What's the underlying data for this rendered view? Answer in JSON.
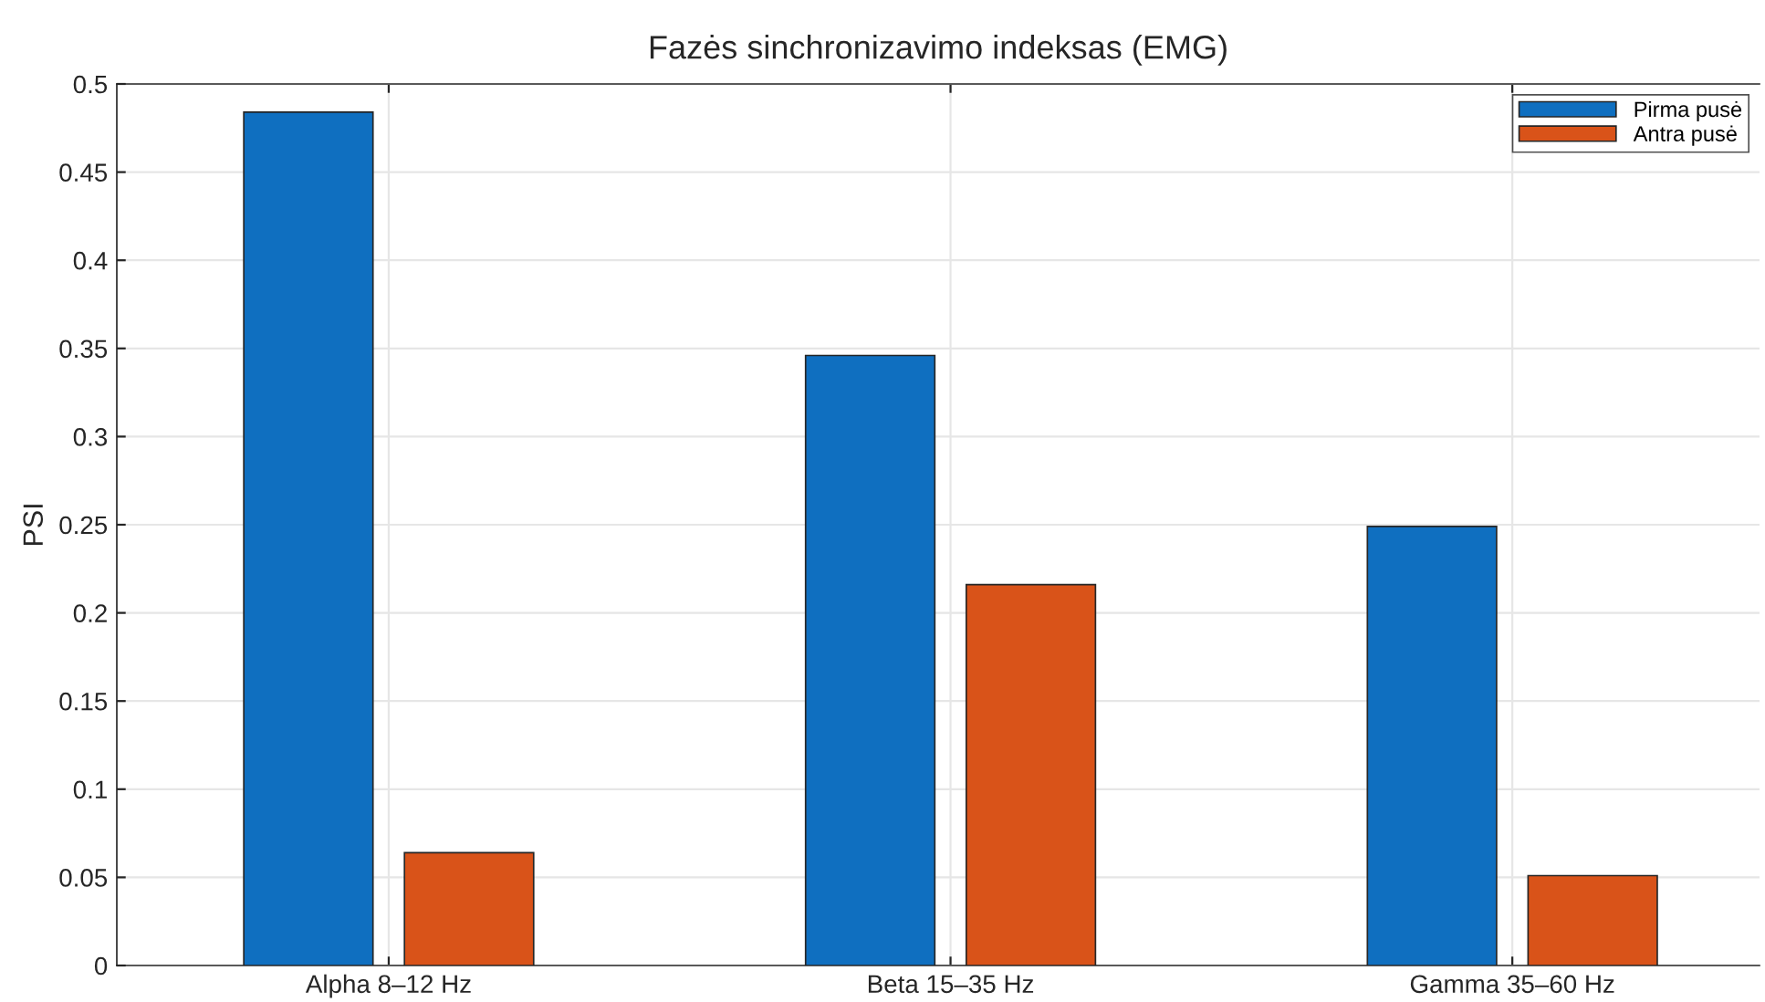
{
  "chart_data": {
    "type": "bar",
    "title": "Fazės sinchronizavimo indeksas (EMG)",
    "ylabel": "PSI",
    "categories": [
      "Alpha 8–12 Hz",
      "Beta 15–35 Hz",
      "Gamma 35–60 Hz"
    ],
    "series": [
      {
        "name": "Pirma pusė",
        "color": "#0f6fc0",
        "values": [
          0.484,
          0.346,
          0.249
        ]
      },
      {
        "name": "Antra pusė",
        "color": "#d95319",
        "values": [
          0.064,
          0.216,
          0.051
        ]
      }
    ],
    "ylim": [
      0,
      0.5
    ],
    "yticks": [
      0,
      0.05,
      0.1,
      0.15,
      0.2,
      0.25,
      0.3,
      0.35,
      0.4,
      0.45,
      0.5
    ],
    "grid": true,
    "legend": "top right"
  }
}
